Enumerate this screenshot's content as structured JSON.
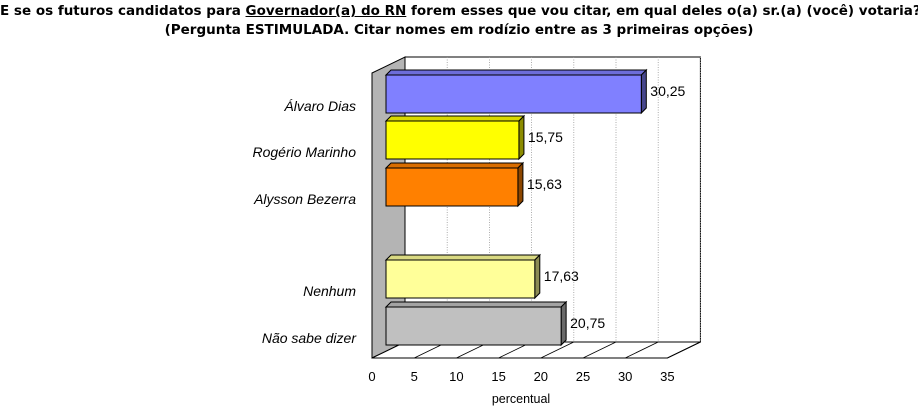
{
  "chart_data": {
    "type": "bar",
    "orientation": "horizontal",
    "style": "3d",
    "title_parts": [
      {
        "text": "E se os futuros candidatos para ",
        "underline": false
      },
      {
        "text": "Governador(a) do RN",
        "underline": true
      },
      {
        "text": " forem esses que vou citar, em qual deles o(a) sr.(a) (você) votaria?",
        "underline": false
      }
    ],
    "subtitle": "(Pergunta ESTIMULADA. Citar nomes em rodízio entre as 3 primeiras opções)",
    "xlabel": "percentual",
    "xlim": [
      0,
      35
    ],
    "xticks": [
      0,
      5,
      10,
      15,
      20,
      25,
      30,
      35
    ],
    "grid": true,
    "categories": [
      "Álvaro Dias",
      "Rogério Marinho",
      "Alysson Bezerra",
      "Nenhum",
      "Não sabe dizer"
    ],
    "values": [
      30.25,
      15.75,
      15.63,
      17.63,
      20.75
    ],
    "value_labels": [
      "30,25",
      "15,75",
      "15,63",
      "17,63",
      "20,75"
    ],
    "colors": [
      "#8080ff",
      "#ffff00",
      "#ff8000",
      "#ffff99",
      "#c0c0c0"
    ]
  }
}
